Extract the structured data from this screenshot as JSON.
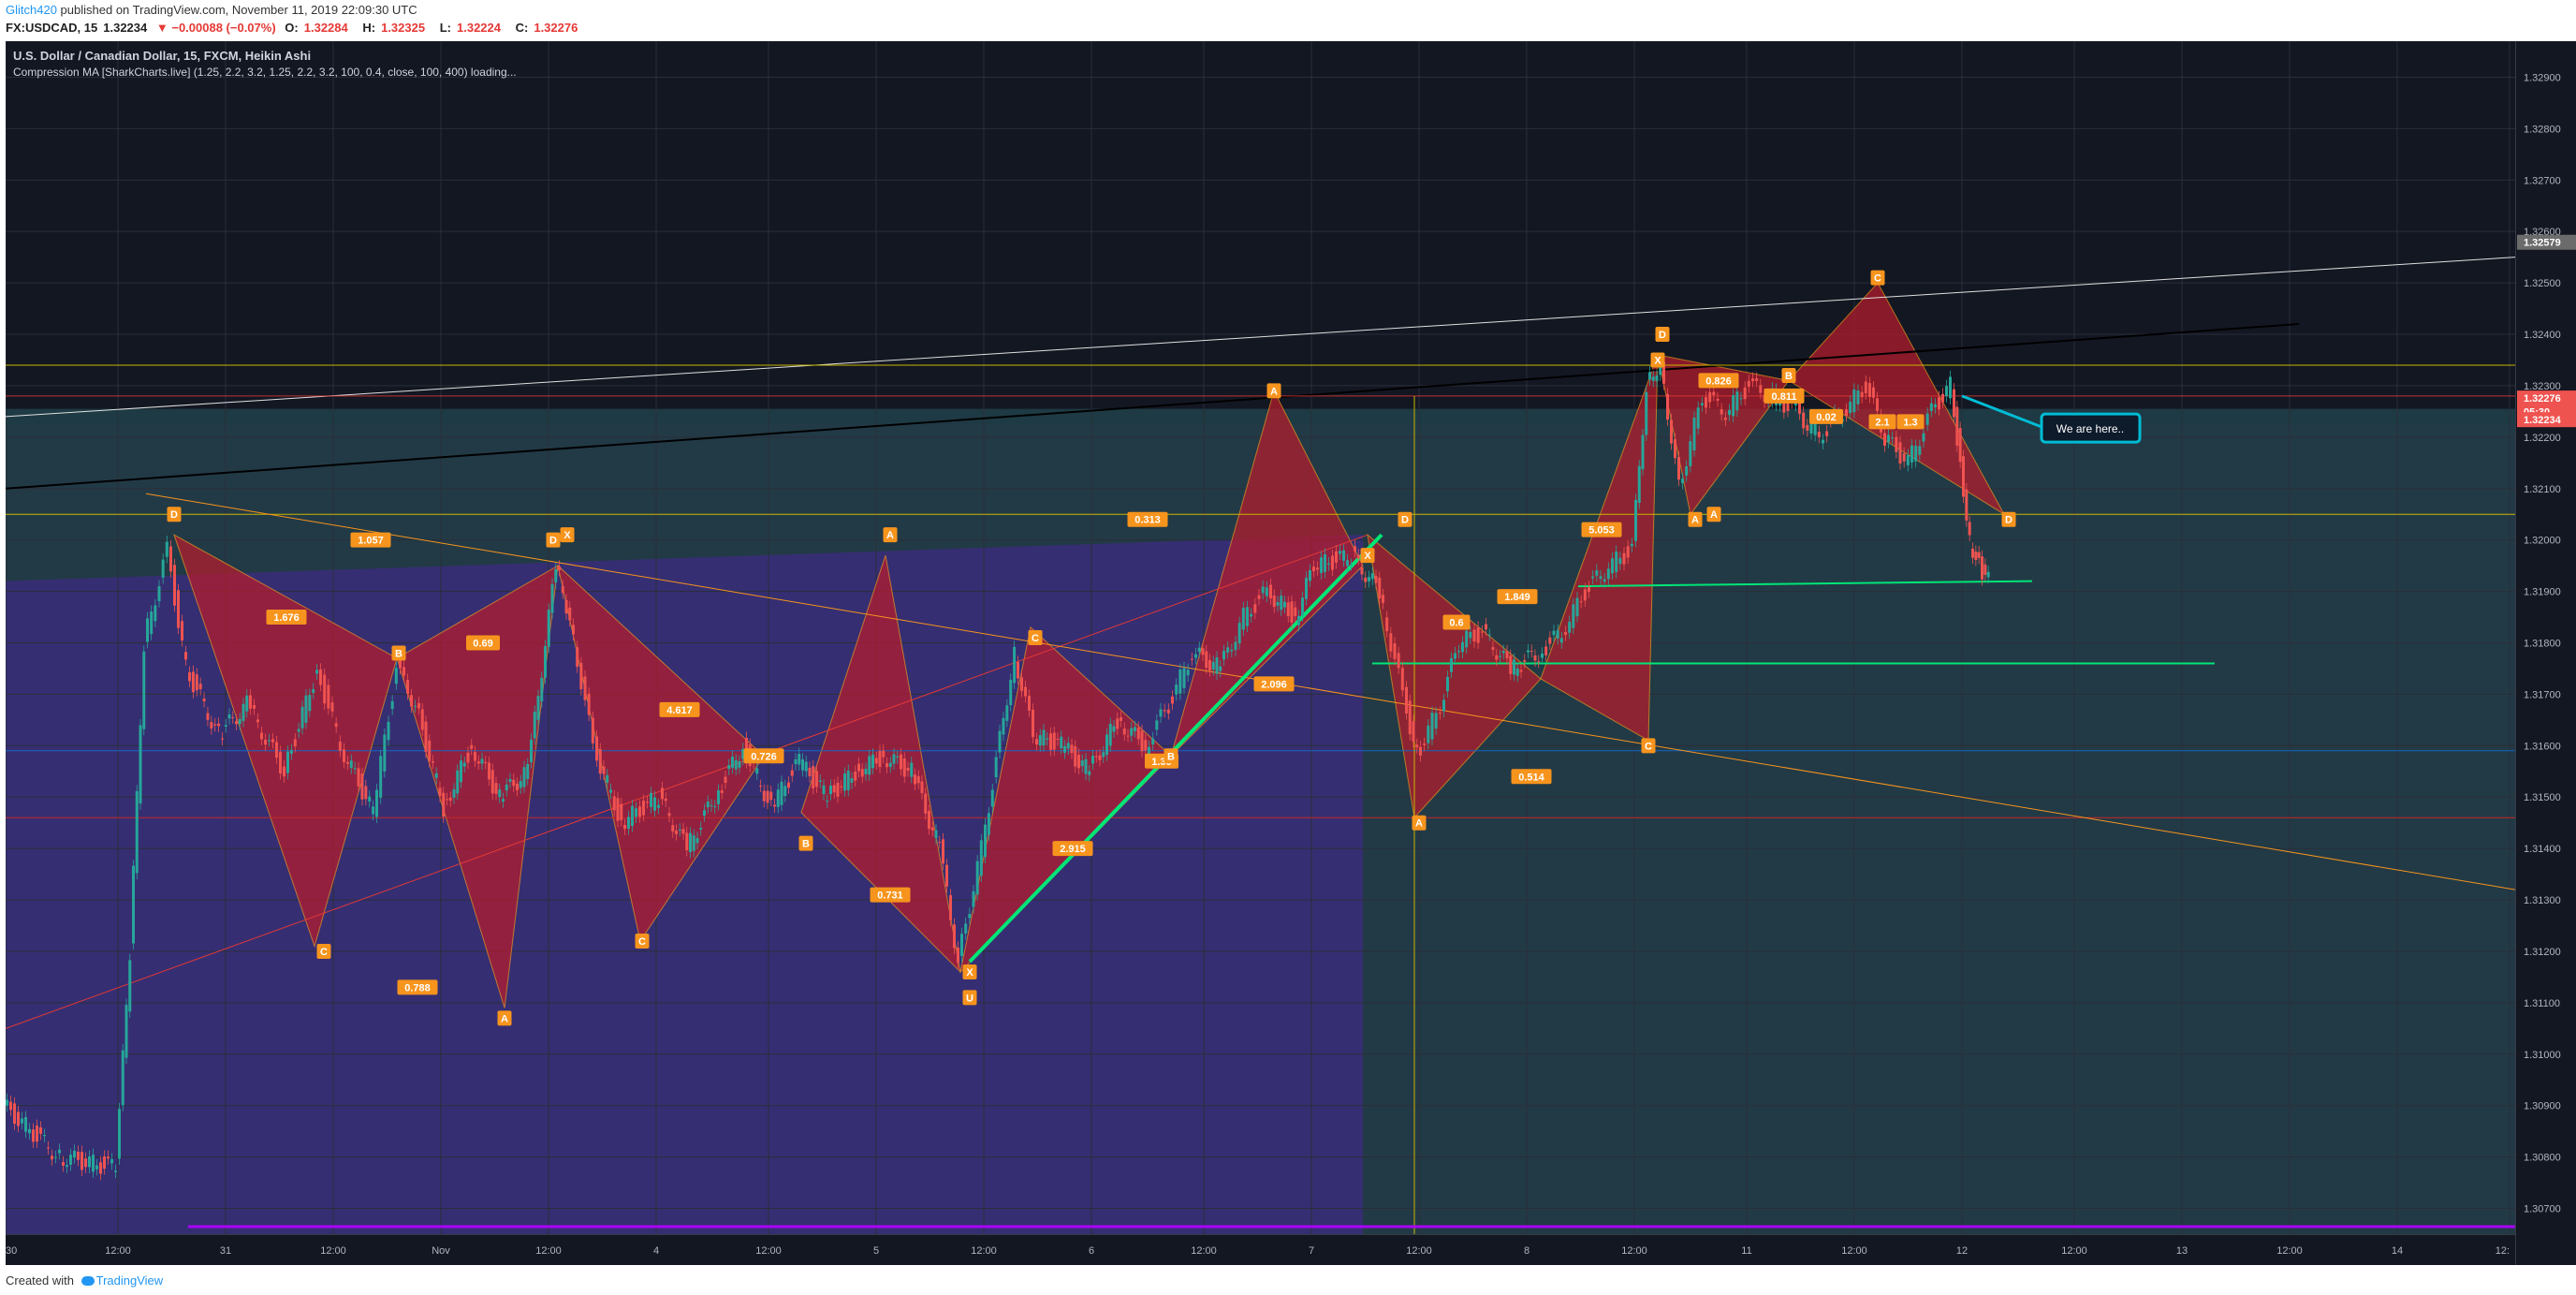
{
  "header": {
    "author": "Glitch420",
    "published_text": "published on TradingView.com, November 11, 2019 22:09:30 UTC",
    "symbol": "FX:USDCAD, 15",
    "last": "1.32234",
    "change": "▼ −0.00088 (−0.07%)",
    "o_label": "O:",
    "o_value": "1.32284",
    "h_label": "H:",
    "h_value": "1.32325",
    "l_label": "L:",
    "l_value": "1.32224",
    "c_label": "C:",
    "c_value": "1.32276"
  },
  "legend": {
    "title": "U.S. Dollar / Canadian Dollar, 15, FXCM, Heikin Ashi",
    "indicator": "Compression MA [SharkCharts.live] (1.25, 2.2, 3.2, 1.25, 2.2, 3.2, 100, 0.4, close, 100, 400) loading..."
  },
  "footer": {
    "created_with": "Created with",
    "brand": "TradingView"
  },
  "callout": "We are here..",
  "price_tags": {
    "top": "1.32579",
    "current": "1.32276",
    "countdown": "05:30",
    "last": "1.32234"
  },
  "colors": {
    "background": "#131722",
    "up": "#26a69a",
    "down": "#ef5350",
    "pattern": "#b71c2c",
    "label": "#f7941d",
    "trend": "#00e676",
    "callout": "#00bcd4"
  },
  "chart_data": {
    "type": "candlestick",
    "chart_style": "Heikin Ashi",
    "symbol": "USDCAD",
    "timeframe": "15",
    "ylim": [
      1.3065,
      1.3297
    ],
    "y_ticks": [
      "1.32900",
      "1.32800",
      "1.32700",
      "1.32600",
      "1.32500",
      "1.32400",
      "1.32300",
      "1.32200",
      "1.32100",
      "1.32000",
      "1.31900",
      "1.31800",
      "1.31700",
      "1.31600",
      "1.31500",
      "1.31400",
      "1.31300",
      "1.31200",
      "1.31100",
      "1.31000",
      "1.30900",
      "1.30800",
      "1.30700"
    ],
    "x_ticks": [
      "30",
      "12:00",
      "31",
      "12:00",
      "Nov",
      "12:00",
      "4",
      "12:00",
      "5",
      "12:00",
      "6",
      "12:00",
      "7",
      "12:00",
      "8",
      "12:00",
      "11",
      "12:00",
      "12",
      "12:00",
      "13",
      "12:00",
      "14",
      "12:"
    ],
    "price_path": [
      [
        0,
        1.309
      ],
      [
        60,
        1.308
      ],
      [
        120,
        1.3078
      ],
      [
        135,
        1.312
      ],
      [
        150,
        1.318
      ],
      [
        175,
        1.3198
      ],
      [
        195,
        1.3175
      ],
      [
        230,
        1.3162
      ],
      [
        260,
        1.3168
      ],
      [
        300,
        1.3155
      ],
      [
        335,
        1.3175
      ],
      [
        360,
        1.316
      ],
      [
        395,
        1.3147
      ],
      [
        420,
        1.3175
      ],
      [
        440,
        1.3168
      ],
      [
        470,
        1.3148
      ],
      [
        500,
        1.316
      ],
      [
        530,
        1.315
      ],
      [
        560,
        1.3155
      ],
      [
        590,
        1.3195
      ],
      [
        605,
        1.3185
      ],
      [
        630,
        1.316
      ],
      [
        660,
        1.3145
      ],
      [
        700,
        1.315
      ],
      [
        730,
        1.314
      ],
      [
        760,
        1.315
      ],
      [
        790,
        1.316
      ],
      [
        820,
        1.3148
      ],
      [
        850,
        1.3157
      ],
      [
        880,
        1.315
      ],
      [
        910,
        1.3155
      ],
      [
        940,
        1.3158
      ],
      [
        970,
        1.3155
      ],
      [
        1000,
        1.314
      ],
      [
        1020,
        1.3118
      ],
      [
        1045,
        1.314
      ],
      [
        1080,
        1.3178
      ],
      [
        1100,
        1.3162
      ],
      [
        1130,
        1.316
      ],
      [
        1160,
        1.3155
      ],
      [
        1190,
        1.3165
      ],
      [
        1220,
        1.316
      ],
      [
        1245,
        1.3168
      ],
      [
        1270,
        1.3178
      ],
      [
        1300,
        1.3175
      ],
      [
        1325,
        1.3185
      ],
      [
        1350,
        1.319
      ],
      [
        1380,
        1.3185
      ],
      [
        1400,
        1.3195
      ],
      [
        1440,
        1.3197
      ],
      [
        1470,
        1.319
      ],
      [
        1495,
        1.317
      ],
      [
        1510,
        1.3158
      ],
      [
        1535,
        1.3168
      ],
      [
        1555,
        1.318
      ],
      [
        1580,
        1.3182
      ],
      [
        1610,
        1.3175
      ],
      [
        1640,
        1.3178
      ],
      [
        1665,
        1.3182
      ],
      [
        1690,
        1.319
      ],
      [
        1715,
        1.3195
      ],
      [
        1740,
        1.3198
      ],
      [
        1755,
        1.323
      ],
      [
        1770,
        1.3235
      ],
      [
        1790,
        1.321
      ],
      [
        1815,
        1.3228
      ],
      [
        1840,
        1.3225
      ],
      [
        1865,
        1.323
      ],
      [
        1890,
        1.3228
      ],
      [
        1915,
        1.3225
      ],
      [
        1940,
        1.322
      ],
      [
        1965,
        1.3225
      ],
      [
        1990,
        1.323
      ],
      [
        2010,
        1.322
      ],
      [
        2035,
        1.3215
      ],
      [
        2060,
        1.3225
      ],
      [
        2080,
        1.323
      ],
      [
        2090,
        1.3215
      ],
      [
        2100,
        1.32
      ],
      [
        2110,
        1.3195
      ],
      [
        2120,
        1.3192
      ]
    ],
    "annotations": {
      "point_labels": [
        "D",
        "1.057",
        "D",
        "X",
        "A",
        "0.313",
        "D",
        "1.849",
        "D",
        "X",
        "0.826",
        "B",
        "C",
        "1.676",
        "0.69",
        "B",
        "4.617",
        "0.726",
        "C",
        "C",
        "2.096",
        "X",
        "5.053",
        "0.811",
        "0.02",
        "A",
        "D",
        "A",
        "0.6",
        "2.1",
        "1.3",
        "1.35",
        "0.514",
        "C",
        "C",
        "B",
        "0.731",
        "2.915",
        "B",
        "C",
        "0.788",
        "A",
        "A",
        "U",
        "X",
        "A"
      ]
    }
  }
}
